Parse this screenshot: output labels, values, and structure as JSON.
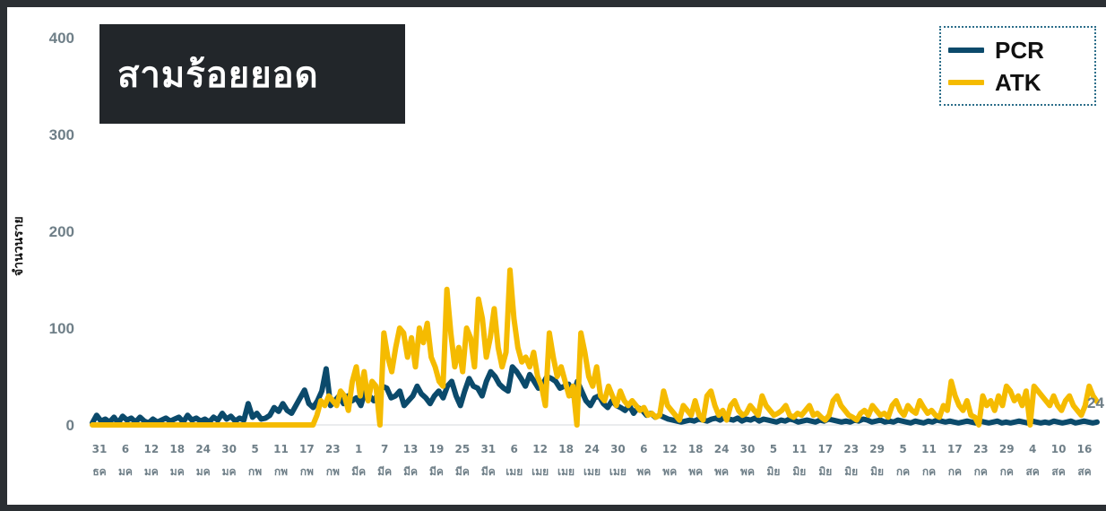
{
  "title": "สามร้อยยอด",
  "chart_data": {
    "type": "line",
    "ylabel": "จำนวนราย",
    "ylim": [
      0,
      400
    ],
    "yticks": [
      "0",
      "100",
      "200",
      "300",
      "400"
    ],
    "x_tick_labels": [
      [
        "31",
        "ธค"
      ],
      [
        "6",
        "มค"
      ],
      [
        "12",
        "มค"
      ],
      [
        "18",
        "มค"
      ],
      [
        "24",
        "มค"
      ],
      [
        "30",
        "มค"
      ],
      [
        "5",
        "กพ"
      ],
      [
        "11",
        "กพ"
      ],
      [
        "17",
        "กพ"
      ],
      [
        "23",
        "กพ"
      ],
      [
        "1",
        "มีค"
      ],
      [
        "7",
        "มีค"
      ],
      [
        "13",
        "มีค"
      ],
      [
        "19",
        "มีค"
      ],
      [
        "25",
        "มีค"
      ],
      [
        "31",
        "มีค"
      ],
      [
        "6",
        "เมย"
      ],
      [
        "12",
        "เมย"
      ],
      [
        "18",
        "เมย"
      ],
      [
        "24",
        "เมย"
      ],
      [
        "30",
        "เมย"
      ],
      [
        "6",
        "พค"
      ],
      [
        "12",
        "พค"
      ],
      [
        "18",
        "พค"
      ],
      [
        "24",
        "พค"
      ],
      [
        "30",
        "พค"
      ],
      [
        "5",
        "มิย"
      ],
      [
        "11",
        "มิย"
      ],
      [
        "17",
        "มิย"
      ],
      [
        "23",
        "มิย"
      ],
      [
        "29",
        "มิย"
      ],
      [
        "5",
        "กค"
      ],
      [
        "11",
        "กค"
      ],
      [
        "17",
        "กค"
      ],
      [
        "23",
        "กค"
      ],
      [
        "29",
        "กค"
      ],
      [
        "4",
        "สค"
      ],
      [
        "10",
        "สค"
      ],
      [
        "16",
        "สค"
      ]
    ],
    "series": [
      {
        "name": "PCR",
        "color": "#0b4a6b",
        "values": [
          2,
          10,
          4,
          6,
          3,
          8,
          2,
          9,
          5,
          7,
          3,
          8,
          4,
          2,
          6,
          3,
          5,
          7,
          4,
          6,
          8,
          3,
          10,
          5,
          7,
          4,
          6,
          3,
          8,
          5,
          12,
          6,
          9,
          4,
          7,
          5,
          22,
          8,
          12,
          6,
          7,
          10,
          18,
          14,
          22,
          15,
          12,
          20,
          28,
          36,
          22,
          18,
          25,
          35,
          58,
          20,
          25,
          30,
          22,
          30,
          25,
          28,
          20,
          35,
          30,
          25,
          32,
          40,
          38,
          28,
          30,
          35,
          20,
          25,
          30,
          40,
          32,
          28,
          22,
          30,
          35,
          28,
          40,
          45,
          30,
          20,
          35,
          48,
          40,
          38,
          30,
          45,
          55,
          50,
          42,
          38,
          35,
          60,
          55,
          48,
          40,
          52,
          45,
          38,
          42,
          50,
          48,
          45,
          38,
          40,
          42,
          30,
          45,
          35,
          25,
          20,
          28,
          30,
          22,
          18,
          25,
          20,
          18,
          15,
          20,
          12,
          18,
          15,
          10,
          12,
          8,
          10,
          8,
          6,
          5,
          4,
          3,
          4,
          5,
          4,
          6,
          5,
          4,
          6,
          7,
          5,
          8,
          6,
          5,
          7,
          4,
          6,
          5,
          7,
          4,
          6,
          5,
          4,
          3,
          5,
          4,
          6,
          5,
          3,
          4,
          5,
          4,
          3,
          5,
          4,
          6,
          5,
          4,
          3,
          4,
          3,
          5,
          4,
          6,
          5,
          3,
          4,
          5,
          3,
          4,
          3,
          5,
          4,
          3,
          2,
          4,
          3,
          2,
          4,
          3,
          5,
          4,
          3,
          4,
          3,
          2,
          3,
          4,
          3,
          2,
          4,
          3,
          2,
          3,
          4,
          2,
          3,
          2,
          3,
          4,
          3,
          2,
          4,
          3,
          2,
          3,
          2,
          4,
          3,
          2,
          3,
          4,
          2,
          3,
          4,
          3,
          2,
          3
        ]
      },
      {
        "name": "ATK",
        "color": "#f5bb00",
        "values": [
          0,
          0,
          0,
          0,
          0,
          0,
          0,
          0,
          0,
          0,
          0,
          0,
          0,
          0,
          0,
          0,
          0,
          0,
          0,
          0,
          0,
          0,
          0,
          0,
          0,
          0,
          0,
          0,
          0,
          0,
          0,
          0,
          0,
          0,
          0,
          0,
          0,
          0,
          0,
          0,
          0,
          0,
          0,
          0,
          0,
          0,
          0,
          0,
          0,
          0,
          0,
          0,
          0,
          0,
          0,
          0,
          0,
          10,
          25,
          20,
          30,
          25,
          20,
          35,
          30,
          15,
          45,
          60,
          30,
          55,
          25,
          45,
          40,
          0,
          95,
          70,
          55,
          80,
          100,
          95,
          70,
          90,
          60,
          100,
          85,
          105,
          70,
          60,
          45,
          40,
          140,
          95,
          60,
          80,
          55,
          100,
          90,
          60,
          130,
          110,
          70,
          90,
          120,
          80,
          60,
          75,
          160,
          110,
          80,
          65,
          70,
          60,
          75,
          50,
          40,
          20,
          95,
          70,
          50,
          60,
          45,
          30,
          40,
          0,
          95,
          75,
          50,
          40,
          60,
          30,
          25,
          40,
          30,
          20,
          35,
          25,
          20,
          25,
          20,
          15,
          18,
          10,
          12,
          8,
          10,
          35,
          20,
          15,
          10,
          5,
          20,
          15,
          10,
          25,
          10,
          5,
          30,
          35,
          20,
          10,
          15,
          5,
          20,
          25,
          15,
          10,
          12,
          20,
          15,
          10,
          30,
          20,
          15,
          10,
          12,
          15,
          20,
          10,
          8,
          12,
          10,
          15,
          20,
          10,
          12,
          8,
          5,
          10,
          25,
          30,
          20,
          15,
          10,
          8,
          5,
          12,
          15,
          10,
          20,
          15,
          10,
          12,
          8,
          20,
          25,
          15,
          10,
          20,
          15,
          12,
          25,
          18,
          12,
          15,
          10,
          8,
          20,
          15,
          45,
          30,
          20,
          15,
          25,
          10,
          8,
          0,
          30,
          20,
          25,
          15,
          30,
          20,
          40,
          35,
          25,
          30,
          20,
          35,
          0,
          40,
          35,
          30,
          25,
          20,
          30,
          20,
          15,
          25,
          30,
          20,
          15,
          10,
          20,
          40,
          30,
          24
        ]
      }
    ],
    "end_label": "24",
    "legend_position": "top-right",
    "grid": false
  }
}
